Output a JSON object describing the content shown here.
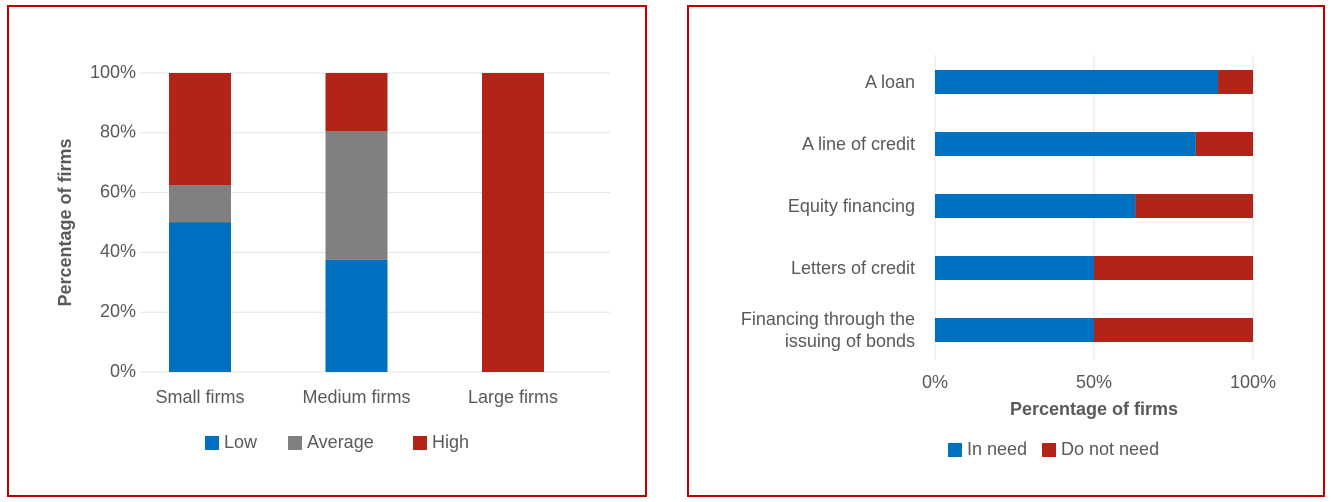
{
  "chart_data": [
    {
      "type": "stacked_bar",
      "y_label": "Percentage of firms",
      "categories": [
        "Small firms",
        "Medium firms",
        "Large firms"
      ],
      "series": [
        {
          "name": "Low",
          "color": "#0070c0",
          "values": [
            50,
            37.5,
            0
          ]
        },
        {
          "name": "Average",
          "color": "#808080",
          "values": [
            12.5,
            43,
            0
          ]
        },
        {
          "name": "High",
          "color": "#b22418",
          "values": [
            37.5,
            19.5,
            100
          ]
        }
      ],
      "ylim": [
        0,
        100
      ],
      "yticks": [
        {
          "value": 0,
          "label": "0%"
        },
        {
          "value": 20,
          "label": "20%"
        },
        {
          "value": 40,
          "label": "40%"
        },
        {
          "value": 60,
          "label": "60%"
        },
        {
          "value": 80,
          "label": "80%"
        },
        {
          "value": 100,
          "label": "100%"
        }
      ],
      "grid": true,
      "legend": "bottom"
    },
    {
      "type": "stacked_barh",
      "x_label": "Percentage of firms",
      "categories": [
        "A loan",
        "A line of credit",
        "Equity financing",
        "Letters of credit",
        "Financing through the issuing of bonds"
      ],
      "series": [
        {
          "name": "In need",
          "color": "#0070c0",
          "values": [
            89,
            82,
            63,
            50,
            50
          ]
        },
        {
          "name": "Do not need",
          "color": "#b22418",
          "values": [
            11,
            18,
            37,
            50,
            50
          ]
        }
      ],
      "xlim": [
        0,
        100
      ],
      "xticks": [
        {
          "value": 0,
          "label": "0%"
        },
        {
          "value": 50,
          "label": "50%"
        },
        {
          "value": 100,
          "label": "100%"
        }
      ],
      "grid": true,
      "legend": "bottom"
    }
  ]
}
